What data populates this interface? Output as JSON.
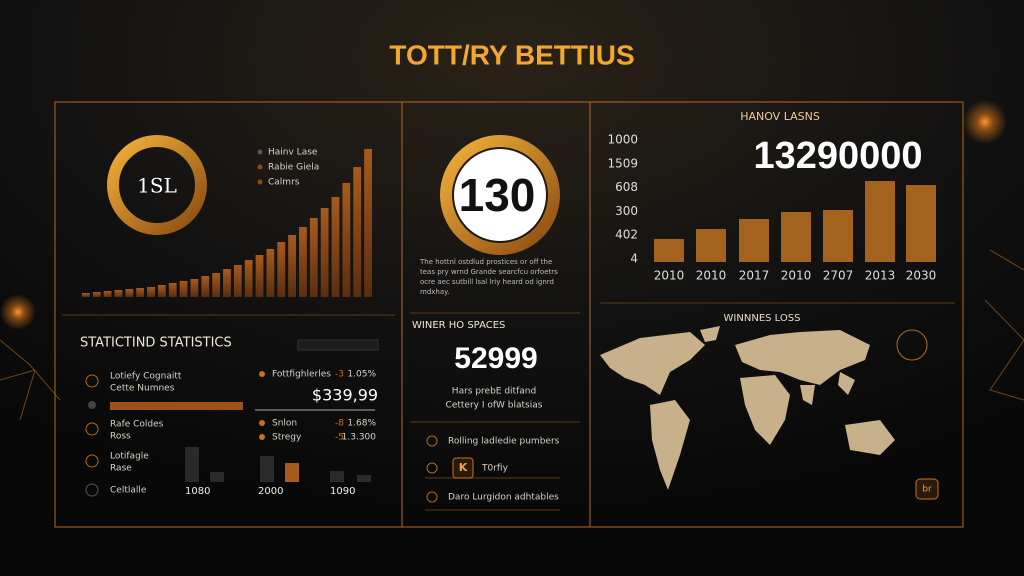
{
  "header": {
    "title": "TOTT/RY BETTIUS"
  },
  "left_top": {
    "donut_label": "1SL",
    "legend": [
      "Hainv Lase",
      "Rabie Giela",
      "Calmrs"
    ],
    "bars": [
      4,
      5,
      6,
      7,
      8,
      9,
      10,
      12,
      14,
      16,
      18,
      21,
      24,
      28,
      32,
      37,
      42,
      48,
      55,
      62,
      70,
      79,
      89,
      100,
      114,
      130,
      148
    ]
  },
  "left_bottom": {
    "title": "STATICTIND STATISTICS",
    "rows": [
      [
        "Lotiefy Cognaitt",
        "Cette Numnes"
      ],
      [
        "Rafe Coldes",
        "Ross"
      ],
      [
        "Lotifagle",
        "Rase"
      ],
      [
        "Celtlalle"
      ]
    ],
    "stats": [
      [
        "Fottfighlerles",
        "-3",
        "1.05%"
      ],
      [
        "Snlon",
        "-8",
        "1.68%"
      ],
      [
        "Stregy",
        "-5",
        "1.3.300"
      ]
    ],
    "amount": "$339,99",
    "small_bars": [
      35,
      10,
      26,
      19,
      11,
      7
    ],
    "small_labels": [
      "1080",
      "2000",
      "1090"
    ]
  },
  "middle": {
    "donut_value": "130",
    "paragraph": [
      "The hottnl ostdlud prostices or off the",
      "teas pry wrnd Grande searcfcu orfoetrs",
      "ocre aec sutbill lsal lriy heard od ignrd",
      "mdxhay."
    ],
    "section_title": "WINER HO SPACES",
    "big_number": "52999",
    "caption": [
      "Hars prebE ditfand",
      "Cettery I ofW blatsias"
    ],
    "list": [
      "Rolling ladledie pumbers",
      "T0rfiy",
      "Daro Lurgidon adhtables"
    ],
    "badge": "K"
  },
  "right_top": {
    "title": "HANOV LASNS",
    "big_number": "13290000",
    "y_labels": [
      "1000",
      "1509",
      "608",
      "300",
      "402",
      "4"
    ],
    "years": [
      "2010",
      "2010",
      "2017",
      "2010",
      "2707",
      "2013",
      "2030"
    ],
    "bars": [
      23,
      33,
      43,
      50,
      52,
      81,
      77
    ]
  },
  "right_bottom": {
    "title": "WINNNES LOSS",
    "icon": "br"
  }
}
